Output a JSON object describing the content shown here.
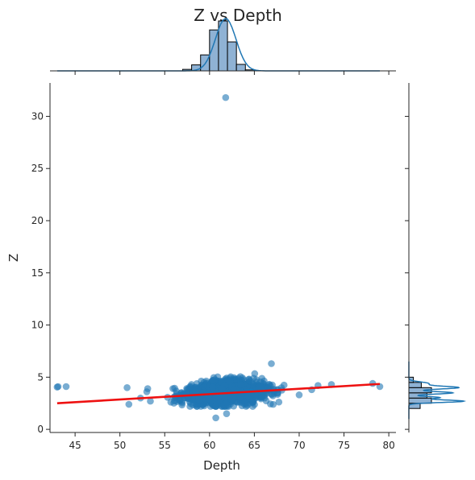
{
  "chart_data": {
    "type": "scatter",
    "title": "Z vs Depth",
    "xlabel": "Depth",
    "ylabel": "Z",
    "xlim": [
      42.2,
      80.8
    ],
    "ylim": [
      -0.3,
      33.2
    ],
    "xticks": [
      45,
      50,
      55,
      60,
      65,
      70,
      75,
      80
    ],
    "yticks": [
      0,
      5,
      10,
      15,
      20,
      25,
      30
    ],
    "grid": false,
    "colors": {
      "points": "#1f77b4",
      "regression": "#ee1111",
      "hist_fill": "#8fb2d4",
      "kde": "#1f77b4"
    },
    "regression_line": {
      "x": [
        43.0,
        79.0
      ],
      "y": [
        2.5,
        4.35
      ]
    },
    "outliers": [
      {
        "x": 43.0,
        "y": 4.05
      },
      {
        "x": 43.1,
        "y": 4.1
      },
      {
        "x": 44.0,
        "y": 4.1
      },
      {
        "x": 50.8,
        "y": 4.0
      },
      {
        "x": 51.0,
        "y": 2.4
      },
      {
        "x": 52.3,
        "y": 3.0
      },
      {
        "x": 53.0,
        "y": 3.6
      },
      {
        "x": 53.1,
        "y": 3.9
      },
      {
        "x": 53.4,
        "y": 2.7
      },
      {
        "x": 60.7,
        "y": 1.1
      },
      {
        "x": 61.9,
        "y": 1.5
      },
      {
        "x": 61.8,
        "y": 31.8
      },
      {
        "x": 66.9,
        "y": 6.3
      },
      {
        "x": 70.0,
        "y": 3.3
      },
      {
        "x": 71.4,
        "y": 3.8
      },
      {
        "x": 72.1,
        "y": 4.2
      },
      {
        "x": 73.6,
        "y": 4.3
      },
      {
        "x": 78.2,
        "y": 4.4
      },
      {
        "x": 79.0,
        "y": 4.1
      }
    ],
    "cluster": {
      "x_range": [
        55,
        70
      ],
      "y_range": [
        2.2,
        5.6
      ],
      "x_center": 61.8,
      "y_center": 3.55,
      "approx_points": 1400
    },
    "marginal_x_hist": {
      "bins": [
        57,
        58,
        59,
        60,
        61,
        62,
        63,
        64
      ],
      "counts": [
        0.03,
        0.12,
        0.32,
        0.82,
        1.0,
        0.58,
        0.13,
        0.02
      ]
    },
    "marginal_y_hist": {
      "bins": [
        2.0,
        2.5,
        3.0,
        3.5,
        4.0,
        4.5
      ],
      "counts": [
        0.5,
        1.0,
        0.8,
        1.0,
        0.55,
        0.2
      ]
    }
  }
}
